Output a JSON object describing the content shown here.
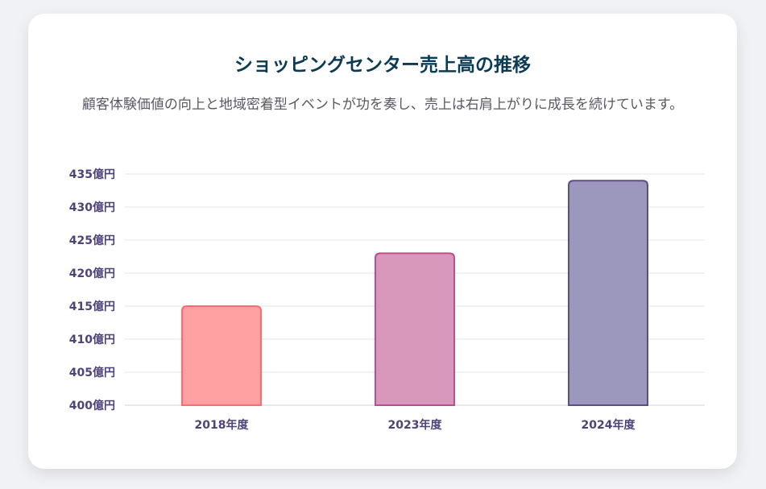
{
  "card": {
    "title": "ショッピングセンター売上高の推移",
    "subtitle": "顧客体験価値の向上と地域密着型イベントが功を奏し、売上は右肩上がりに成長を続けています。"
  },
  "chart_data": {
    "type": "bar",
    "categories": [
      "2018年度",
      "2023年度",
      "2024年度"
    ],
    "values": [
      415,
      423,
      434
    ],
    "ylim": [
      400,
      435
    ],
    "yticks": [
      400,
      405,
      410,
      415,
      420,
      425,
      430,
      435
    ],
    "ytick_suffix": "億円",
    "grid": true,
    "legend": "none",
    "bar_colors": [
      {
        "fill": "#ffa0a2",
        "stroke": "#ff6b6f"
      },
      {
        "fill": "#d898bb",
        "stroke": "#b8508f"
      },
      {
        "fill": "#9c97bd",
        "stroke": "#5c4f84"
      }
    ]
  }
}
